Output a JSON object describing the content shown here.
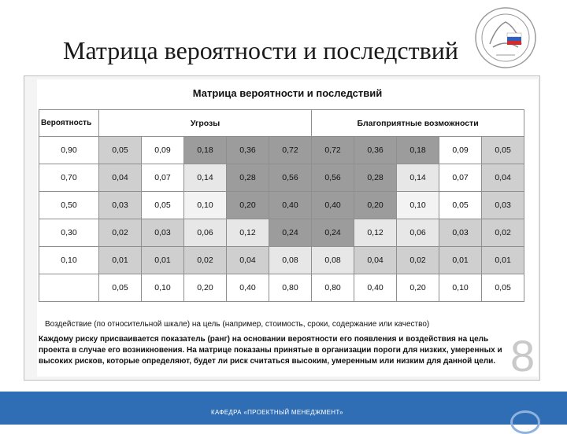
{
  "slide": {
    "title": "Матрица вероятности и последствий",
    "footer": "КАФЕДРА «ПРОЕКТНЫЙ МЕНЕДЖМЕНТ»",
    "page_number": "8"
  },
  "matrix": {
    "heading": "Матрица вероятности и последствий",
    "col_probability": "Вероятность",
    "col_threats": "Угрозы",
    "col_opportunities": "Благоприятные возможности",
    "rows": [
      {
        "p": "0,90",
        "cells": [
          "0,05",
          "0,09",
          "0,18",
          "0,36",
          "0,72",
          "0,72",
          "0,36",
          "0,18",
          "0,09",
          "0,05"
        ]
      },
      {
        "p": "0,70",
        "cells": [
          "0,04",
          "0,07",
          "0,14",
          "0,28",
          "0,56",
          "0,56",
          "0,28",
          "0,14",
          "0,07",
          "0,04"
        ]
      },
      {
        "p": "0,50",
        "cells": [
          "0,03",
          "0,05",
          "0,10",
          "0,20",
          "0,40",
          "0,40",
          "0,20",
          "0,10",
          "0,05",
          "0,03"
        ]
      },
      {
        "p": "0,30",
        "cells": [
          "0,02",
          "0,03",
          "0,06",
          "0,12",
          "0,24",
          "0,24",
          "0,12",
          "0,06",
          "0,03",
          "0,02"
        ]
      },
      {
        "p": "0,10",
        "cells": [
          "0,01",
          "0,01",
          "0,02",
          "0,04",
          "0,08",
          "0,08",
          "0,04",
          "0,02",
          "0,01",
          "0,01"
        ]
      }
    ],
    "impact_values": [
      "0,05",
      "0,10",
      "0,20",
      "0,40",
      "0,80",
      "0,80",
      "0,40",
      "0,20",
      "0,10",
      "0,05"
    ],
    "impact_note": "Воздействие (по относительной шкале) на цель (например, стоимость, сроки, содержание или качество)",
    "paragraph": "Каждому риску присваивается показатель (ранг) на основании вероятности его появления и воздействия на цель проекта в случае его возникновения. На матрице показаны принятые в организации пороги для низких, умеренных и высоких рисков, которые определяют, будет ли риск считаться высоким, умеренным или низким для данной цели.",
    "cell_shades": [
      [
        "c2",
        "c1",
        "c4",
        "c4",
        "c4",
        "c4",
        "c4",
        "c4",
        "c1",
        "c2"
      ],
      [
        "c2",
        "c1",
        "c3",
        "c4",
        "c4",
        "c4",
        "c4",
        "c3",
        "c1",
        "c2"
      ],
      [
        "c2",
        "c1",
        "c5",
        "c4",
        "c4",
        "c4",
        "c4",
        "c5",
        "c1",
        "c2"
      ],
      [
        "c2",
        "c2",
        "c3",
        "c3",
        "c4",
        "c4",
        "c3",
        "c3",
        "c2",
        "c2"
      ],
      [
        "c2",
        "c2",
        "c2",
        "c2",
        "c3",
        "c3",
        "c2",
        "c2",
        "c2",
        "c2"
      ]
    ]
  }
}
